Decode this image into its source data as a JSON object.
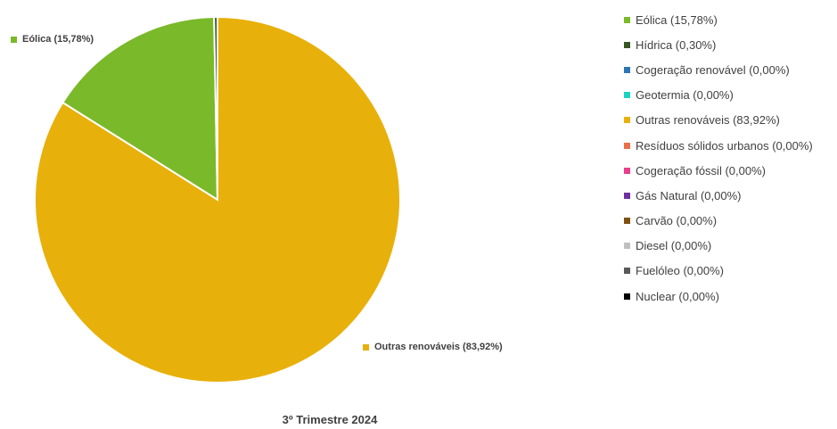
{
  "chart_data": {
    "type": "pie",
    "caption": "3º Trimestre 2024",
    "slices": [
      {
        "label": "Eólica (15,78%)",
        "value": 15.78,
        "color": "#7AB929"
      },
      {
        "label": "Hídrica (0,30%)",
        "value": 0.3,
        "color": "#375623"
      },
      {
        "label": "Cogeração renovável (0,00%)",
        "value": 0.0,
        "color": "#2E75B6"
      },
      {
        "label": "Geotermia (0,00%)",
        "value": 0.0,
        "color": "#19D3C5"
      },
      {
        "label": "Outras renováveis (83,92%)",
        "value": 83.92,
        "color": "#E8B00A"
      },
      {
        "label": "Resíduos sólidos urbanos (0,00%)",
        "value": 0.0,
        "color": "#E8704B"
      },
      {
        "label": "Cogeração fóssil (0,00%)",
        "value": 0.0,
        "color": "#E83E8C"
      },
      {
        "label": "Gás Natural (0,00%)",
        "value": 0.0,
        "color": "#7030A0"
      },
      {
        "label": "Carvão (0,00%)",
        "value": 0.0,
        "color": "#7F4F0F"
      },
      {
        "label": "Diesel (0,00%)",
        "value": 0.0,
        "color": "#BFBFBF"
      },
      {
        "label": "Fuelóleo (0,00%)",
        "value": 0.0,
        "color": "#595959"
      },
      {
        "label": "Nuclear (0,00%)",
        "value": 0.0,
        "color": "#000000"
      }
    ],
    "data_labels": [
      {
        "text": "Eólica (15,78%)",
        "color": "#7AB929"
      },
      {
        "text": "Outras renováveis (83,92%)",
        "color": "#E8B00A"
      }
    ],
    "legend_position": "right"
  }
}
